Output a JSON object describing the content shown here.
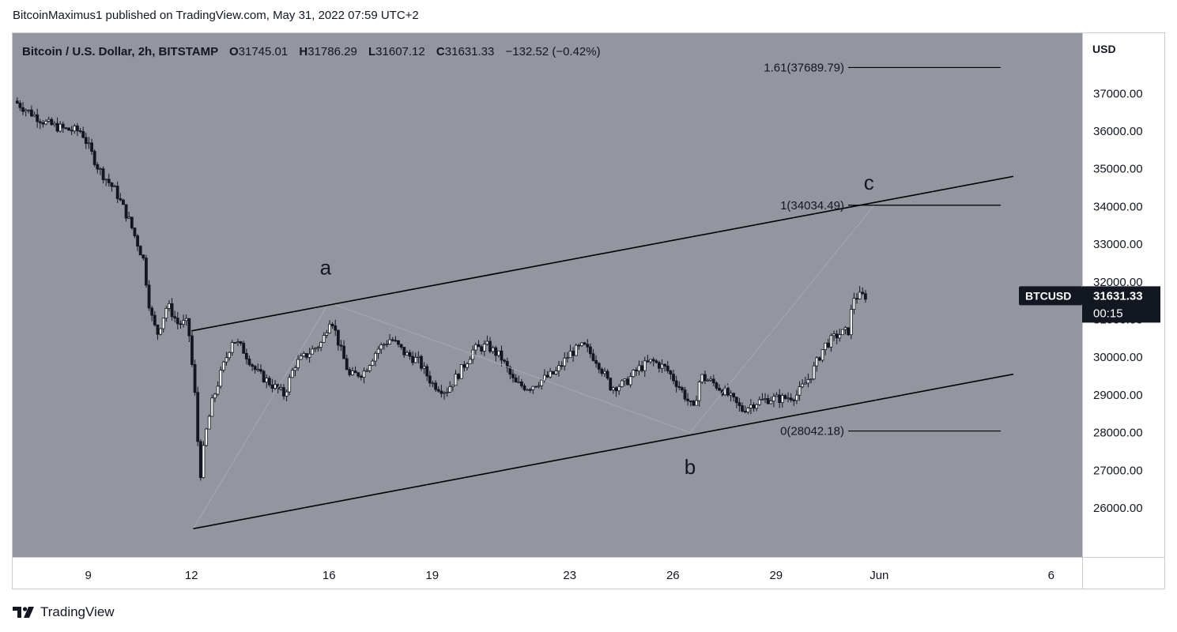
{
  "publisher_line": "BitcoinMaximus1 published on TradingView.com, May 31, 2022 07:59 UTC+2",
  "footer_brand": "TradingView",
  "footer_logo_icon": "tradingview-logo-icon",
  "colors": {
    "plot_bg": "#93959f",
    "axis_bg": "#ffffff",
    "candle": "#131722",
    "line": "#000000",
    "badge_bg": "#131722",
    "badge_text": "#ffffff"
  },
  "chart_data": {
    "type": "candlestick",
    "title": "Bitcoin / U.S. Dollar, 2h, BITSTAMP",
    "ohlc_header": {
      "o_label": "O",
      "o": "31745.01",
      "h_label": "H",
      "h": "31786.29",
      "l_label": "L",
      "l": "31607.12",
      "c_label": "C",
      "c": "31631.33",
      "change": "−132.52 (−0.42%)"
    },
    "y_axis": {
      "label": "USD",
      "range": [
        24700,
        38600
      ],
      "ticks": [
        "26000.00",
        "27000.00",
        "28000.00",
        "29000.00",
        "30000.00",
        "31000.00",
        "32000.00",
        "33000.00",
        "34000.00",
        "35000.00",
        "36000.00",
        "37000.00"
      ]
    },
    "x_axis": {
      "range": [
        6.8,
        37.9
      ],
      "ticks": [
        {
          "label": "9",
          "day": 9
        },
        {
          "label": "12",
          "day": 12
        },
        {
          "label": "16",
          "day": 16
        },
        {
          "label": "19",
          "day": 19
        },
        {
          "label": "23",
          "day": 23
        },
        {
          "label": "26",
          "day": 26
        },
        {
          "label": "29",
          "day": 29
        },
        {
          "label": "Jun",
          "day": 32
        },
        {
          "label": "6",
          "day": 37
        }
      ]
    },
    "price_path": [
      [
        6.85,
        36800
      ],
      [
        7.3,
        36500
      ],
      [
        7.8,
        36200
      ],
      [
        8.3,
        36050
      ],
      [
        8.8,
        36000
      ],
      [
        9.3,
        35000
      ],
      [
        9.8,
        34400
      ],
      [
        10.2,
        33600
      ],
      [
        10.6,
        32600
      ],
      [
        10.8,
        31200
      ],
      [
        11.0,
        30600
      ],
      [
        11.3,
        31400
      ],
      [
        11.6,
        30900
      ],
      [
        11.9,
        30900
      ],
      [
        12.1,
        29000
      ],
      [
        12.25,
        26800
      ],
      [
        12.4,
        27900
      ],
      [
        12.6,
        28800
      ],
      [
        12.9,
        29700
      ],
      [
        13.2,
        30500
      ],
      [
        13.5,
        30200
      ],
      [
        13.9,
        29600
      ],
      [
        14.3,
        29300
      ],
      [
        14.7,
        29000
      ],
      [
        15.0,
        29800
      ],
      [
        15.4,
        30100
      ],
      [
        15.8,
        30400
      ],
      [
        16.05,
        31100
      ],
      [
        16.3,
        30300
      ],
      [
        16.6,
        29500
      ],
      [
        17.0,
        29600
      ],
      [
        17.4,
        30200
      ],
      [
        17.8,
        30500
      ],
      [
        18.2,
        30100
      ],
      [
        18.6,
        29900
      ],
      [
        19.0,
        29300
      ],
      [
        19.4,
        29100
      ],
      [
        19.8,
        29600
      ],
      [
        20.2,
        30200
      ],
      [
        20.6,
        30300
      ],
      [
        21.0,
        30000
      ],
      [
        21.4,
        29300
      ],
      [
        21.8,
        29200
      ],
      [
        22.2,
        29400
      ],
      [
        22.6,
        29600
      ],
      [
        23.0,
        30100
      ],
      [
        23.4,
        30300
      ],
      [
        23.8,
        29900
      ],
      [
        24.2,
        29200
      ],
      [
        24.6,
        29300
      ],
      [
        25.0,
        29700
      ],
      [
        25.4,
        29900
      ],
      [
        25.8,
        29700
      ],
      [
        26.2,
        29200
      ],
      [
        26.6,
        28600
      ],
      [
        26.8,
        29500
      ],
      [
        27.2,
        29300
      ],
      [
        27.6,
        29000
      ],
      [
        28.0,
        28600
      ],
      [
        28.4,
        28800
      ],
      [
        28.8,
        28900
      ],
      [
        29.2,
        28900
      ],
      [
        29.6,
        29000
      ],
      [
        30.0,
        29500
      ],
      [
        30.4,
        30300
      ],
      [
        30.8,
        30600
      ],
      [
        31.1,
        30700
      ],
      [
        31.25,
        31600
      ],
      [
        31.6,
        31631
      ]
    ],
    "fib_levels": [
      {
        "label": "1.61(37689.79)",
        "ratio": "1.61",
        "price": 37689.79
      },
      {
        "label": "1(34034.49)",
        "ratio": "1",
        "price": 34034.49
      },
      {
        "label": "0(28042.18)",
        "ratio": "0",
        "price": 28042.18
      }
    ],
    "channel_lines": [
      {
        "name": "upper",
        "points": [
          [
            12.0,
            30700
          ],
          [
            35.9,
            34800
          ]
        ]
      },
      {
        "name": "lower",
        "points": [
          [
            12.05,
            25450
          ],
          [
            35.9,
            29550
          ]
        ]
      }
    ],
    "projection_lines": [
      {
        "name": "a-to-b",
        "points": [
          [
            16.0,
            31450
          ],
          [
            26.5,
            28000
          ]
        ]
      },
      {
        "name": "b-to-c",
        "points": [
          [
            26.5,
            28000
          ],
          [
            31.85,
            34034
          ]
        ]
      },
      {
        "name": "start-to-a",
        "points": [
          [
            12.05,
            25450
          ],
          [
            16.0,
            31450
          ]
        ]
      }
    ],
    "wave_labels": [
      {
        "text": "a",
        "day": 15.9,
        "price": 32200
      },
      {
        "text": "b",
        "day": 26.5,
        "price": 26900
      },
      {
        "text": "c",
        "day": 31.7,
        "price": 34450
      }
    ],
    "last_price": {
      "symbol": "BTCUSD",
      "price": "31631.33",
      "countdown": "00:15",
      "value": 31631.33
    }
  }
}
